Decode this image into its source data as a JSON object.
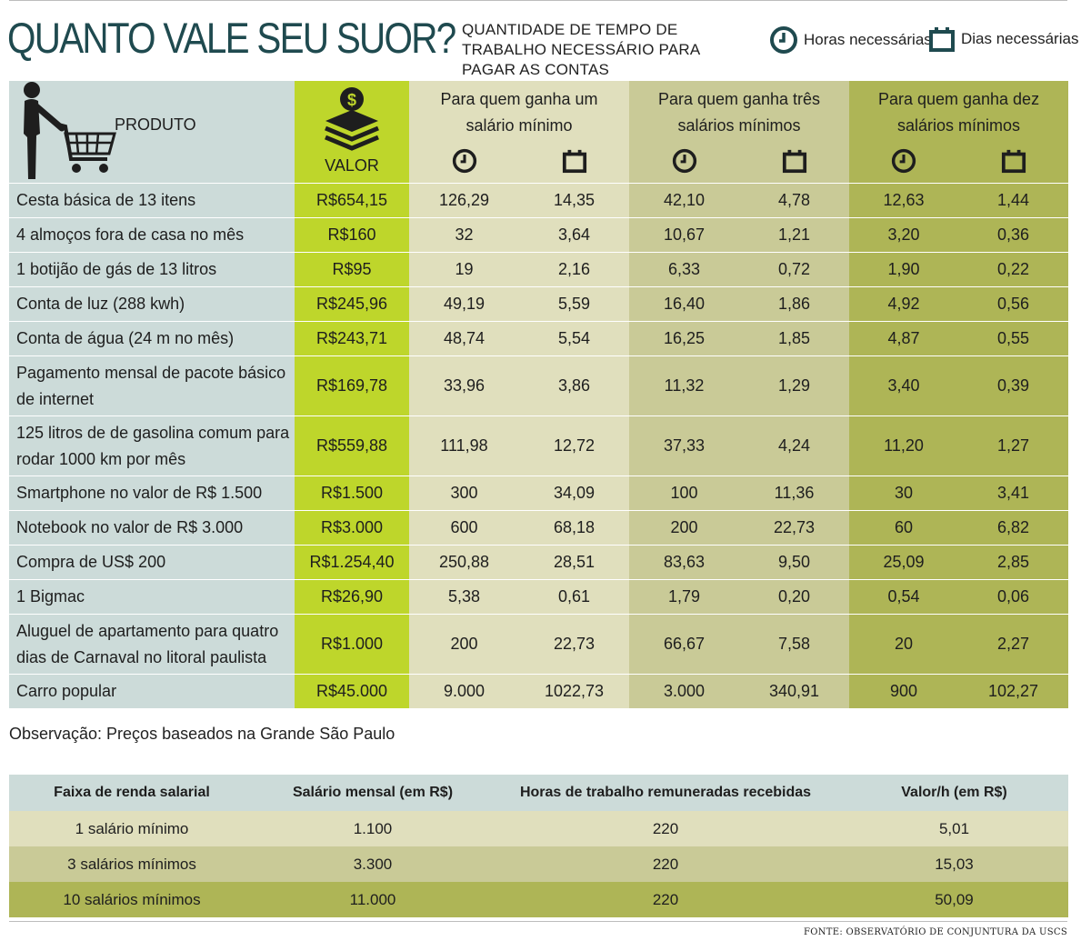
{
  "header": {
    "title": "QUANTO VALE SEU SUOR?",
    "subtitle": "QUANTIDADE DE TEMPO DE TRABALHO NECESSÁRIO PARA PAGAR AS CONTAS",
    "legend_hours": "Horas necessárias",
    "legend_days": "Dias necessárias"
  },
  "chart_data": {
    "type": "table",
    "columns": {
      "produto": "PRODUTO",
      "valor": "VALOR",
      "groups": [
        "Para quem ganha um salário mínimo",
        "Para quem ganha três salários mínimos",
        "Para quem ganha dez salários mínimos"
      ]
    },
    "rows": [
      {
        "produto": "Cesta básica de 13 itens",
        "valor": "R$654,15",
        "cells": [
          "126,29",
          "14,35",
          "42,10",
          "4,78",
          "12,63",
          "1,44"
        ]
      },
      {
        "produto": "4 almoços fora de casa no mês",
        "valor": "R$160",
        "cells": [
          "32",
          "3,64",
          "10,67",
          "1,21",
          "3,20",
          "0,36"
        ]
      },
      {
        "produto": "1 botijão de gás de 13 litros",
        "valor": "R$95",
        "cells": [
          "19",
          "2,16",
          "6,33",
          "0,72",
          "1,90",
          "0,22"
        ]
      },
      {
        "produto": "Conta de luz (288 kwh)",
        "valor": "R$245,96",
        "cells": [
          "49,19",
          "5,59",
          "16,40",
          "1,86",
          "4,92",
          "0,56"
        ]
      },
      {
        "produto": "Conta de água (24 m   no mês)",
        "valor": "R$243,71",
        "cells": [
          "48,74",
          "5,54",
          "16,25",
          "1,85",
          "4,87",
          "0,55"
        ]
      },
      {
        "produto": "Pagamento mensal de pacote básico de internet",
        "valor": "R$169,78",
        "cells": [
          "33,96",
          "3,86",
          "11,32",
          "1,29",
          "3,40",
          "0,39"
        ]
      },
      {
        "produto": "125 litros de de gasolina comum para rodar 1000 km por mês",
        "valor": "R$559,88",
        "cells": [
          "111,98",
          "12,72",
          "37,33",
          "4,24",
          "11,20",
          "1,27"
        ]
      },
      {
        "produto": "Smartphone no valor de R$ 1.500",
        "valor": "R$1.500",
        "cells": [
          "300",
          "34,09",
          "100",
          "11,36",
          "30",
          "3,41"
        ]
      },
      {
        "produto": "Notebook no valor de R$ 3.000",
        "valor": "R$3.000",
        "cells": [
          "600",
          "68,18",
          "200",
          "22,73",
          "60",
          "6,82"
        ]
      },
      {
        "produto": "Compra de US$ 200",
        "valor": "R$1.254,40",
        "cells": [
          "250,88",
          "28,51",
          "83,63",
          "9,50",
          "25,09",
          "2,85"
        ]
      },
      {
        "produto": "1 Bigmac",
        "valor": "R$26,90",
        "cells": [
          "5,38",
          "0,61",
          "1,79",
          "0,20",
          "0,54",
          "0,06"
        ]
      },
      {
        "produto": "Aluguel de apartamento para quatro dias de Carnaval no litoral paulista",
        "valor": "R$1.000",
        "cells": [
          "200",
          "22,73",
          "66,67",
          "7,58",
          "20",
          "2,27"
        ]
      },
      {
        "produto": "Carro popular",
        "valor": "R$45.000",
        "cells": [
          "9.000",
          "1022,73",
          "3.000",
          "340,91",
          "900",
          "102,27"
        ]
      }
    ]
  },
  "observacao": "Observação: Preços baseados na Grande São Paulo",
  "faixa": {
    "headers": [
      "Faixa de renda salarial",
      "Salário mensal (em R$)",
      "Horas de trabalho remuneradas recebidas",
      "Valor/h (em R$)"
    ],
    "rows": [
      [
        "1 salário mínimo",
        "1.100",
        "220",
        "5,01"
      ],
      [
        "3 salários mínimos",
        "3.300",
        "220",
        "15,03"
      ],
      [
        "10 salários mínimos",
        "11.000",
        "220",
        "50,09"
      ]
    ]
  },
  "source": "FONTE: OBSERVATÓRIO DE CONJUNTURA DA USCS",
  "colors": {
    "title": "#1f4a4f",
    "produto_bg": "#ccdbd9",
    "valor_bg": "#bed62b",
    "group1_bg": "#e0dfbd",
    "group2_bg": "#c9ca97",
    "group3_bg": "#aeb556"
  },
  "icons": {
    "person": "person-with-cart-icon",
    "money": "money-stack-icon",
    "hours": "clock-icon",
    "days": "calendar-icon"
  }
}
